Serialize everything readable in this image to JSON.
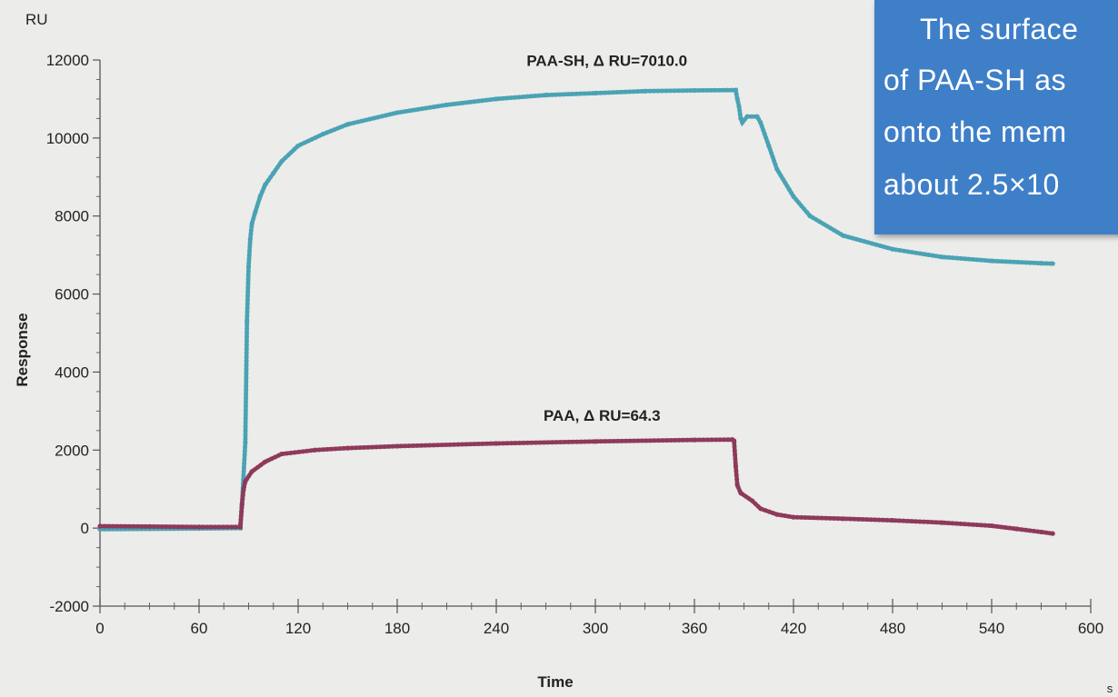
{
  "chart_data": {
    "type": "line",
    "ylabel": "Response",
    "yunit": "RU",
    "xlabel": "Time",
    "xunit": "s",
    "xlim": [
      0,
      600
    ],
    "ylim": [
      -2000,
      12000
    ],
    "xticks": [
      0,
      60,
      120,
      180,
      240,
      300,
      360,
      420,
      480,
      540,
      600
    ],
    "xtick_labels": [
      "0",
      "60",
      "120",
      "180",
      "240",
      "300",
      "360",
      "420",
      "480",
      "540",
      "600"
    ],
    "yticks": [
      -2000,
      0,
      2000,
      4000,
      6000,
      8000,
      10000,
      12000
    ],
    "ytick_labels": [
      "-2000",
      "0",
      "2000",
      "4000",
      "6000",
      "8000",
      "10000",
      "12000"
    ],
    "series": [
      {
        "name": "PAA-SH, Δ RU=7010.0",
        "color": "#4aa3b4",
        "points": [
          [
            0,
            -30
          ],
          [
            30,
            -20
          ],
          [
            60,
            -10
          ],
          [
            85,
            0
          ],
          [
            86,
            600
          ],
          [
            88,
            2200
          ],
          [
            89,
            5300
          ],
          [
            90,
            6700
          ],
          [
            91,
            7400
          ],
          [
            92,
            7800
          ],
          [
            94,
            8100
          ],
          [
            97,
            8500
          ],
          [
            100,
            8800
          ],
          [
            105,
            9100
          ],
          [
            110,
            9400
          ],
          [
            120,
            9800
          ],
          [
            135,
            10100
          ],
          [
            150,
            10350
          ],
          [
            180,
            10650
          ],
          [
            210,
            10850
          ],
          [
            240,
            11000
          ],
          [
            270,
            11100
          ],
          [
            300,
            11150
          ],
          [
            330,
            11200
          ],
          [
            360,
            11220
          ],
          [
            385,
            11230
          ],
          [
            386,
            11000
          ],
          [
            387,
            10800
          ],
          [
            388,
            10500
          ],
          [
            389,
            10400
          ],
          [
            392,
            10550
          ],
          [
            398,
            10550
          ],
          [
            400,
            10400
          ],
          [
            405,
            9800
          ],
          [
            410,
            9200
          ],
          [
            420,
            8500
          ],
          [
            430,
            8000
          ],
          [
            450,
            7500
          ],
          [
            480,
            7150
          ],
          [
            510,
            6950
          ],
          [
            540,
            6850
          ],
          [
            570,
            6790
          ],
          [
            577,
            6780
          ]
        ]
      },
      {
        "name": "PAA,  Δ RU=64.3",
        "color": "#8e3a5a",
        "points": [
          [
            0,
            50
          ],
          [
            30,
            40
          ],
          [
            60,
            30
          ],
          [
            85,
            30
          ],
          [
            86,
            600
          ],
          [
            87,
            1000
          ],
          [
            88,
            1200
          ],
          [
            92,
            1450
          ],
          [
            100,
            1700
          ],
          [
            110,
            1900
          ],
          [
            130,
            2000
          ],
          [
            150,
            2050
          ],
          [
            180,
            2100
          ],
          [
            240,
            2170
          ],
          [
            300,
            2220
          ],
          [
            360,
            2260
          ],
          [
            383,
            2270
          ],
          [
            384,
            2240
          ],
          [
            385,
            1600
          ],
          [
            386,
            1100
          ],
          [
            388,
            900
          ],
          [
            395,
            700
          ],
          [
            400,
            500
          ],
          [
            410,
            350
          ],
          [
            420,
            280
          ],
          [
            450,
            240
          ],
          [
            480,
            200
          ],
          [
            510,
            140
          ],
          [
            540,
            60
          ],
          [
            555,
            -20
          ],
          [
            570,
            -100
          ],
          [
            577,
            -140
          ]
        ]
      }
    ],
    "annotations": [
      {
        "text": "PAA-SH, Δ RU=7010.0",
        "x": 307,
        "y": 11850
      },
      {
        "text": "PAA,  Δ RU=64.3",
        "x": 304,
        "y": 2750
      }
    ]
  },
  "callout": {
    "lines": [
      "The surface",
      "of PAA-SH as",
      "onto the mem",
      "about 2.5×10"
    ]
  }
}
